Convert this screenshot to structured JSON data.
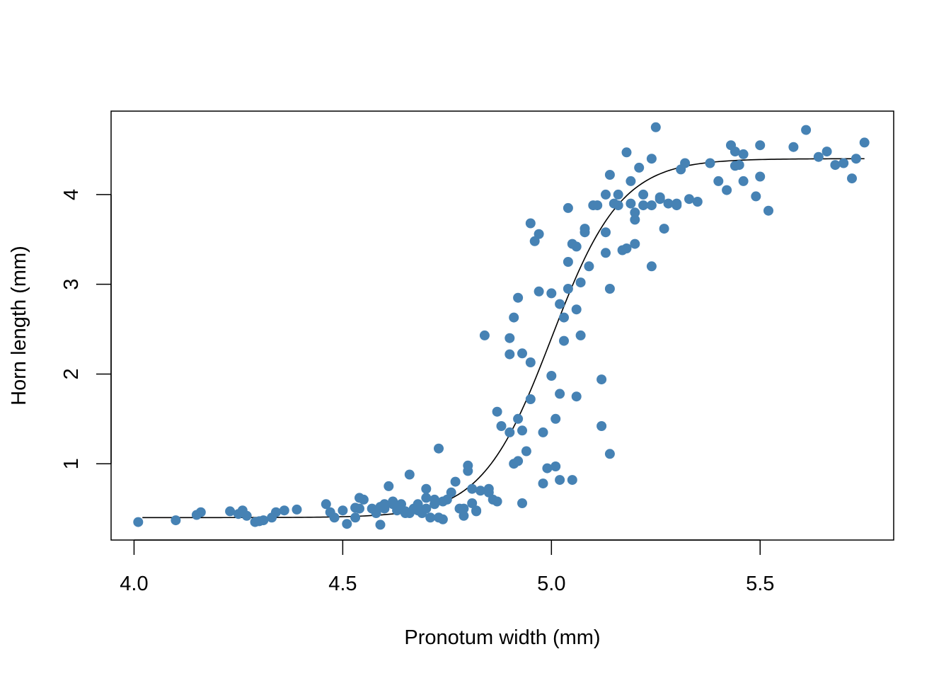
{
  "chart_data": {
    "type": "scatter",
    "title": "",
    "xlabel": "Pronotum width (mm)",
    "ylabel": "Horn length (mm)",
    "xlim": [
      3.945,
      5.82
    ],
    "ylim": [
      0.15,
      4.93
    ],
    "xticks": [
      4.0,
      4.5,
      5.0,
      5.5
    ],
    "xtick_labels": [
      "4.0",
      "4.5",
      "5.0",
      "5.5"
    ],
    "yticks": [
      1,
      2,
      3,
      4
    ],
    "ytick_labels": [
      "1",
      "2",
      "3",
      "4"
    ],
    "grid": false,
    "legend": "none",
    "point_color": "#4682B4",
    "line_color": "#000000",
    "series": [
      {
        "type": "scatter",
        "x": [
          4.01,
          4.1,
          4.15,
          4.16,
          4.23,
          4.25,
          4.26,
          4.27,
          4.29,
          4.3,
          4.31,
          4.33,
          4.34,
          4.36,
          4.39,
          4.46,
          4.47,
          4.48,
          4.5,
          4.51,
          4.53,
          4.53,
          4.54,
          4.55,
          4.57,
          4.58,
          4.59,
          4.6,
          4.61,
          4.62,
          4.63,
          4.64,
          4.65,
          4.66,
          4.67,
          4.68,
          4.69,
          4.7,
          4.71,
          4.72,
          4.73,
          4.74,
          4.76,
          4.77,
          4.78,
          4.79,
          4.8,
          4.81,
          4.82,
          4.83,
          4.84,
          4.85,
          4.87,
          4.88,
          4.9,
          4.91,
          4.92,
          4.93,
          4.94,
          4.95,
          4.96,
          4.97,
          4.98,
          5.0,
          5.01,
          5.02,
          5.03,
          5.04,
          5.05,
          5.06,
          5.07,
          5.08,
          5.1,
          5.12,
          5.13,
          5.14,
          5.15,
          5.17,
          5.18,
          5.19,
          5.2,
          5.21,
          5.22,
          5.24,
          5.25,
          5.26,
          5.27,
          5.28,
          5.3,
          5.31,
          5.32,
          5.33,
          5.38,
          5.4,
          5.42,
          5.43,
          5.44,
          5.45,
          5.46,
          5.49,
          5.5,
          5.52,
          5.58,
          5.61,
          5.64,
          5.66,
          5.68,
          5.72,
          5.73,
          5.75,
          4.59,
          4.62,
          4.66,
          4.7,
          4.72,
          4.79,
          4.81,
          4.86,
          4.9,
          4.91,
          4.95,
          4.99,
          5.02,
          5.04,
          5.07,
          5.09,
          5.14,
          5.18,
          5.2,
          5.24,
          5.3,
          4.73,
          4.8,
          4.85,
          4.9,
          4.92,
          4.97,
          5.0,
          5.05,
          5.06,
          5.13,
          5.16,
          4.95,
          5.02,
          5.08,
          5.11,
          5.19,
          4.93,
          5.06,
          5.14,
          5.24,
          5.44,
          5.5,
          4.7,
          4.75,
          4.65,
          4.6,
          4.54,
          4.92,
          5.03,
          5.2,
          5.13,
          4.98,
          5.04,
          5.16,
          5.26,
          4.68,
          4.74,
          4.82,
          4.87,
          4.93,
          5.01,
          5.12,
          5.22,
          5.35,
          5.46,
          5.7
        ],
        "y": [
          0.35,
          0.37,
          0.43,
          0.46,
          0.47,
          0.44,
          0.48,
          0.42,
          0.35,
          0.36,
          0.37,
          0.4,
          0.46,
          0.48,
          0.49,
          0.55,
          0.46,
          0.4,
          0.48,
          0.33,
          0.51,
          0.4,
          0.62,
          0.6,
          0.5,
          0.45,
          0.52,
          0.5,
          0.75,
          0.58,
          0.48,
          0.55,
          0.47,
          0.88,
          0.5,
          0.55,
          0.45,
          0.72,
          0.4,
          0.55,
          1.17,
          0.38,
          0.68,
          0.8,
          0.5,
          0.42,
          0.92,
          0.56,
          0.47,
          0.7,
          2.43,
          0.68,
          1.58,
          1.42,
          2.4,
          2.63,
          1.5,
          0.56,
          1.14,
          1.72,
          3.48,
          3.56,
          0.78,
          2.9,
          1.5,
          2.78,
          2.37,
          3.85,
          3.45,
          2.72,
          3.02,
          3.58,
          3.88,
          1.94,
          3.35,
          4.22,
          3.9,
          3.38,
          4.47,
          3.9,
          3.8,
          4.3,
          3.88,
          4.4,
          4.75,
          3.95,
          3.62,
          3.9,
          3.88,
          4.28,
          4.35,
          3.95,
          4.35,
          4.15,
          4.05,
          4.55,
          4.48,
          4.33,
          4.45,
          3.98,
          4.55,
          3.82,
          4.53,
          4.72,
          4.42,
          4.48,
          4.33,
          4.18,
          4.4,
          4.58,
          0.32,
          0.55,
          0.45,
          0.5,
          0.6,
          0.5,
          0.72,
          0.6,
          2.22,
          1.0,
          2.13,
          0.95,
          1.78,
          3.25,
          2.43,
          3.2,
          1.11,
          3.4,
          3.72,
          3.2,
          3.9,
          0.4,
          0.98,
          0.72,
          1.35,
          2.85,
          2.92,
          1.98,
          0.82,
          1.75,
          3.58,
          4.0,
          3.68,
          0.82,
          3.62,
          3.88,
          4.15,
          1.37,
          3.42,
          2.95,
          3.88,
          4.32,
          4.2,
          0.62,
          0.6,
          0.45,
          0.55,
          0.5,
          1.03,
          2.63,
          3.45,
          4.0,
          1.35,
          2.95,
          3.88,
          3.97,
          0.48,
          0.58,
          0.48,
          0.58,
          2.23,
          0.97,
          1.42,
          4.0,
          3.92,
          4.15,
          4.35
        ]
      },
      {
        "type": "line",
        "name": "",
        "model": "logistic",
        "lower": 0.4,
        "upper": 4.4,
        "midpoint": 5.0,
        "slope": 12.0,
        "x_range": [
          4.02,
          5.75
        ]
      }
    ]
  }
}
